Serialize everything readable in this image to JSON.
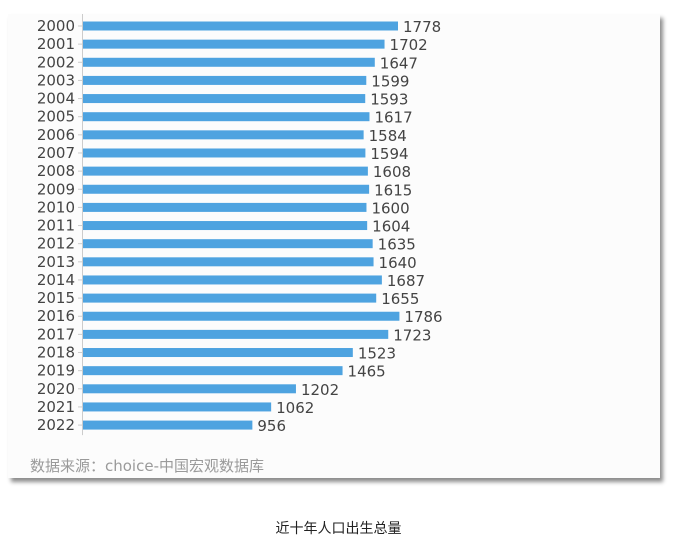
{
  "chart_data": {
    "type": "bar",
    "orientation": "horizontal",
    "categories": [
      "2000",
      "2001",
      "2002",
      "2003",
      "2004",
      "2005",
      "2006",
      "2007",
      "2008",
      "2009",
      "2010",
      "2011",
      "2012",
      "2013",
      "2014",
      "2015",
      "2016",
      "2017",
      "2018",
      "2019",
      "2020",
      "2021",
      "2022"
    ],
    "values": [
      1778,
      1702,
      1647,
      1599,
      1593,
      1617,
      1584,
      1594,
      1608,
      1615,
      1600,
      1604,
      1635,
      1640,
      1687,
      1655,
      1786,
      1723,
      1523,
      1465,
      1202,
      1062,
      956
    ],
    "xlim": [
      0,
      1800
    ],
    "grid": false,
    "bar_color": "#4ea3e0",
    "data_labels": true
  },
  "source": "数据来源：choice-中国宏观数据库",
  "caption": "近十年人口出生总量"
}
